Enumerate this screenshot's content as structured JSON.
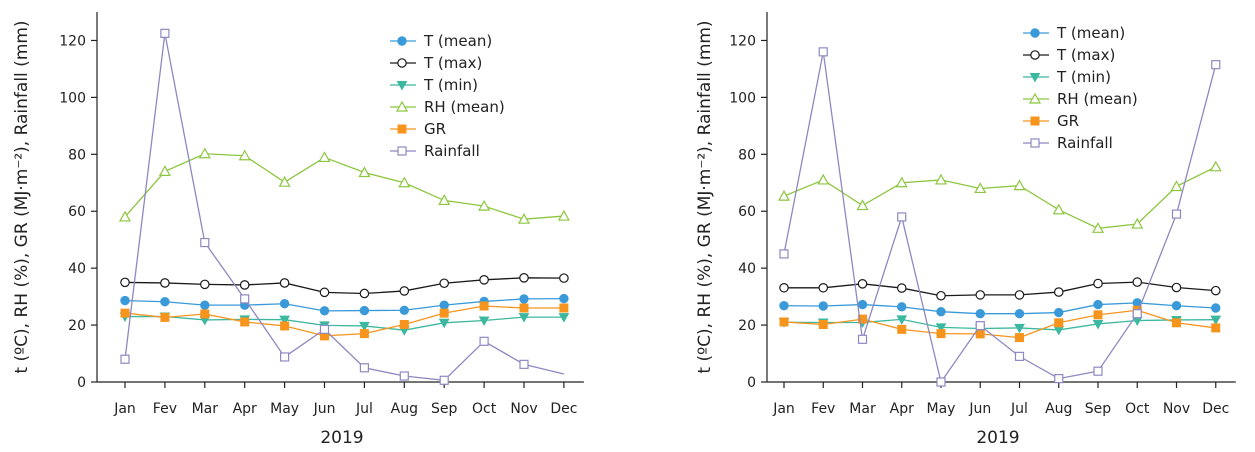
{
  "chart_data": [
    {
      "type": "line",
      "categories": [
        "Jan",
        "Fev",
        "Mar",
        "Apr",
        "May",
        "Jun",
        "Jul",
        "Aug",
        "Sep",
        "Oct",
        "Nov",
        "Dec"
      ],
      "xlabel": "2019",
      "ylabel": "t (ºC), RH (%), GR (MJ·m⁻²), Rainfall (mm)",
      "ylim": [
        0,
        130
      ],
      "yticks": [
        0,
        20,
        40,
        60,
        80,
        100,
        120
      ],
      "grid": false,
      "legend": "top-right",
      "series": [
        {
          "name": "T (mean)",
          "color": "#3a9ad9",
          "marker": "circle-filled",
          "values": [
            28.6,
            28.2,
            27.0,
            27.0,
            27.5,
            25.0,
            25.1,
            25.2,
            27.0,
            28.3,
            29.2,
            29.3
          ]
        },
        {
          "name": "T (max)",
          "color": "#1a1a1a",
          "marker": "circle-open",
          "values": [
            35.0,
            34.8,
            34.3,
            34.1,
            34.8,
            31.5,
            31.1,
            32.0,
            34.7,
            35.9,
            36.6,
            36.5
          ]
        },
        {
          "name": "T (min)",
          "color": "#3cb8a0",
          "marker": "triangle-down-filled",
          "values": [
            23.0,
            23.0,
            21.8,
            22.0,
            21.9,
            19.9,
            19.7,
            18.2,
            20.8,
            21.6,
            22.8,
            22.8
          ]
        },
        {
          "name": "RH (mean)",
          "color": "#8cc63f",
          "marker": "triangle-up-open",
          "values": [
            58.0,
            74.0,
            80.2,
            79.5,
            70.2,
            78.9,
            73.6,
            70.0,
            63.8,
            61.8,
            57.2,
            58.3
          ]
        },
        {
          "name": "GR",
          "color": "#f7941d",
          "marker": "square-filled",
          "values": [
            24.2,
            22.7,
            23.9,
            21.1,
            19.7,
            16.2,
            17.0,
            20.2,
            24.2,
            26.7,
            26.0,
            26.0
          ]
        },
        {
          "name": "Rainfall",
          "color": "#8e88c2",
          "marker": "square-open",
          "values": [
            8.0,
            122.5,
            49.0,
            29.2,
            8.8,
            18.5,
            5.0,
            2.1,
            0.6,
            14.3,
            6.2,
            2.8
          ],
          "markerless_last": true
        }
      ]
    },
    {
      "type": "line",
      "categories": [
        "Jan",
        "Fev",
        "Mar",
        "Apr",
        "May",
        "Jun",
        "Jul",
        "Aug",
        "Sep",
        "Oct",
        "Nov",
        "Dec"
      ],
      "xlabel": "2019",
      "ylabel": "t (ºC), RH (%), GR (MJ·m⁻²), Rainfall (mm)",
      "ylim": [
        0,
        130
      ],
      "yticks": [
        0,
        20,
        40,
        60,
        80,
        100,
        120
      ],
      "grid": false,
      "legend": "top-right",
      "series": [
        {
          "name": "T (mean)",
          "color": "#3a9ad9",
          "marker": "circle-filled",
          "values": [
            26.8,
            26.7,
            27.2,
            26.4,
            24.7,
            24.0,
            24.0,
            24.4,
            27.2,
            27.8,
            26.8,
            26.0
          ]
        },
        {
          "name": "T (max)",
          "color": "#1a1a1a",
          "marker": "circle-open",
          "values": [
            33.1,
            33.1,
            34.5,
            33.0,
            30.3,
            30.6,
            30.6,
            31.6,
            34.6,
            35.1,
            33.2,
            32.1
          ]
        },
        {
          "name": "T (min)",
          "color": "#3cb8a0",
          "marker": "triangle-down-filled",
          "values": [
            21.0,
            20.9,
            20.9,
            22.0,
            19.2,
            18.8,
            19.0,
            18.3,
            20.4,
            21.6,
            21.8,
            21.9
          ]
        },
        {
          "name": "RH (mean)",
          "color": "#8cc63f",
          "marker": "triangle-up-open",
          "values": [
            65.3,
            71.0,
            62.0,
            70.0,
            71.0,
            68.0,
            69.0,
            60.5,
            54.0,
            55.5,
            68.7,
            75.6
          ]
        },
        {
          "name": "GR",
          "color": "#f7941d",
          "marker": "square-filled",
          "values": [
            21.1,
            20.2,
            22.1,
            18.5,
            17.0,
            16.9,
            15.6,
            20.8,
            23.6,
            25.2,
            20.8,
            19.0
          ]
        },
        {
          "name": "Rainfall",
          "color": "#8e88c2",
          "marker": "square-open",
          "values": [
            45.0,
            116.0,
            15.0,
            58.0,
            0.0,
            19.8,
            9.0,
            1.2,
            3.8,
            24.0,
            59.0,
            111.5
          ]
        }
      ]
    }
  ]
}
